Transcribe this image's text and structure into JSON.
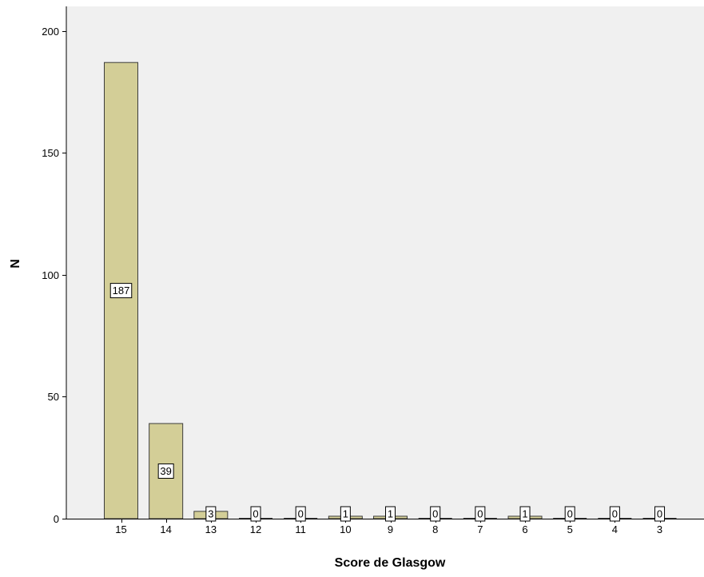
{
  "chart_data": {
    "type": "bar",
    "title": "",
    "xlabel": "Score de Glasgow",
    "ylabel": "N",
    "categories": [
      "15",
      "14",
      "13",
      "12",
      "11",
      "10",
      "9",
      "8",
      "7",
      "6",
      "5",
      "4",
      "3"
    ],
    "values": [
      187,
      39,
      3,
      0,
      0,
      1,
      1,
      0,
      0,
      1,
      0,
      0,
      0
    ],
    "data_labels": [
      "187",
      "39",
      "3",
      "0",
      "0",
      "1",
      "1",
      "0",
      "0",
      "1",
      "0",
      "0",
      "0"
    ],
    "ylim": [
      0,
      210
    ],
    "yticks": [
      0,
      50,
      100,
      150,
      200
    ],
    "ytick_labels": [
      "0",
      "50",
      "100",
      "150",
      "200"
    ],
    "grid": false,
    "legend": "none",
    "colors": {
      "plot_background": "#f0f0f0",
      "bar_fill": "#d3ce97",
      "bar_stroke": "#3c3c3c",
      "axis_line": "#000000",
      "label_box_fill": "#ffffff",
      "label_box_stroke": "#000000"
    }
  }
}
